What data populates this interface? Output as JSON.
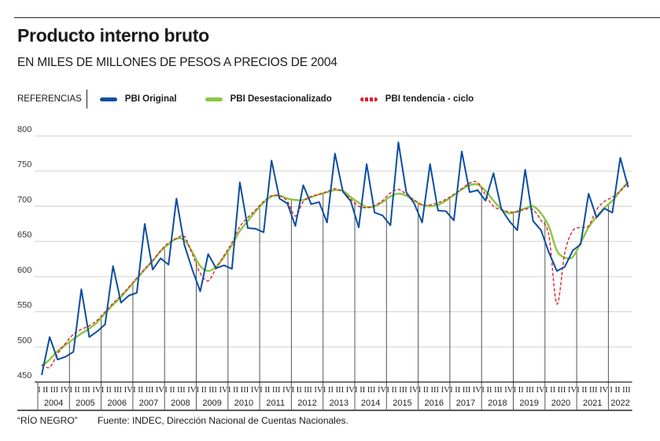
{
  "header": {
    "title": "Producto interno bruto",
    "subtitle": "EN MILES DE MILLONES DE PESOS A PRECIOS DE 2004"
  },
  "legend": {
    "label": "REFERENCIAS",
    "items": [
      {
        "name": "PBI Original",
        "color": "#0a4ea0"
      },
      {
        "name": "PBI Desestacionalizado",
        "color": "#8cc63f"
      },
      {
        "name": "PBI tendencia - ciclo",
        "color": "#e0202a"
      }
    ]
  },
  "footer": {
    "credit": "“RÍO NEGRO”",
    "source": "Fuente: INDEC, Dirección Nacional de Cuentas Nacionales."
  },
  "chart_data": {
    "type": "line",
    "title": "Producto interno bruto",
    "ylabel": "Miles de millones de pesos a precios de 2004",
    "ylim": [
      450,
      800
    ],
    "yticks": [
      450,
      500,
      550,
      600,
      650,
      700,
      750,
      800
    ],
    "grid": true,
    "quarter_labels": [
      "I",
      "II",
      "III",
      "IV"
    ],
    "years": [
      "2004",
      "2005",
      "2006",
      "2007",
      "2008",
      "2009",
      "2010",
      "2011",
      "2012",
      "2013",
      "2014",
      "2015",
      "2016",
      "2017",
      "2018",
      "2019",
      "2020",
      "2021",
      "2022"
    ],
    "quarters_in_last_year": 3,
    "series": [
      {
        "name": "PBI Original",
        "color": "#0a4ea0",
        "style": "solid",
        "values": [
          460,
          514,
          482,
          486,
          493,
          582,
          514,
          522,
          532,
          615,
          563,
          573,
          577,
          675,
          610,
          626,
          617,
          711,
          645,
          610,
          579,
          632,
          612,
          616,
          611,
          734,
          669,
          668,
          663,
          765,
          711,
          704,
          672,
          730,
          703,
          706,
          677,
          775,
          721,
          707,
          670,
          760,
          691,
          687,
          673,
          791,
          720,
          704,
          677,
          760,
          694,
          693,
          680,
          778,
          720,
          723,
          708,
          747,
          696,
          679,
          666,
          752,
          679,
          666,
          634,
          608,
          614,
          637,
          646,
          718,
          684,
          697,
          691,
          769,
          727
        ]
      },
      {
        "name": "PBI Desestacionalizado",
        "color": "#8cc63f",
        "style": "solid",
        "values": [
          472,
          482,
          494,
          503,
          511,
          519,
          526,
          535,
          548,
          560,
          571,
          584,
          597,
          610,
          622,
          636,
          646,
          654,
          652,
          635,
          615,
          608,
          614,
          628,
          645,
          665,
          679,
          693,
          705,
          714,
          715,
          711,
          709,
          709,
          713,
          717,
          720,
          723,
          722,
          713,
          705,
          699,
          700,
          706,
          714,
          718,
          715,
          708,
          702,
          700,
          702,
          708,
          716,
          724,
          730,
          731,
          722,
          708,
          696,
          690,
          693,
          697,
          700,
          690,
          671,
          637,
          627,
          628,
          648,
          670,
          685,
          698,
          708,
          722,
          735
        ]
      },
      {
        "name": "PBI tendencia - ciclo",
        "color": "#e0202a",
        "style": "dashed",
        "values": [
          475,
          471,
          490,
          505,
          518,
          525,
          530,
          538,
          550,
          562,
          573,
          585,
          598,
          611,
          623,
          637,
          648,
          654,
          657,
          632,
          605,
          594,
          612,
          630,
          648,
          671,
          684,
          695,
          707,
          715,
          715,
          707,
          686,
          707,
          714,
          717,
          721,
          725,
          720,
          710,
          700,
          698,
          701,
          708,
          719,
          724,
          717,
          709,
          702,
          702,
          705,
          710,
          717,
          725,
          733,
          734,
          716,
          700,
          695,
          692,
          692,
          696,
          695,
          680,
          658,
          561,
          634,
          665,
          670,
          672,
          695,
          707,
          713,
          722,
          733
        ]
      }
    ]
  }
}
